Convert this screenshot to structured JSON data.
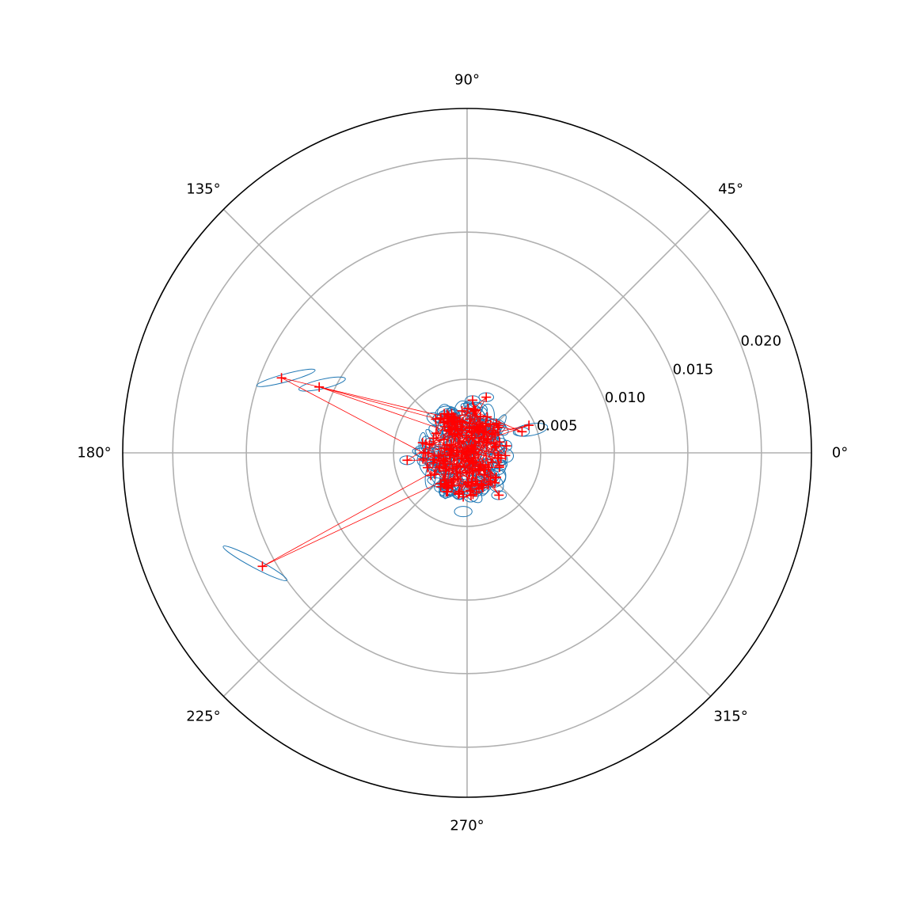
{
  "chart_data": {
    "type": "scatter",
    "projection": "polar",
    "rlim": [
      0,
      0.0234
    ],
    "radial_ticks": [
      0.005,
      0.01,
      0.015,
      0.02
    ],
    "radial_tick_labels": [
      "0.005",
      "0.010",
      "0.015",
      "0.020"
    ],
    "angular_ticks_deg": [
      0,
      45,
      90,
      135,
      180,
      225,
      270,
      315
    ],
    "angular_tick_labels": [
      "0°",
      "45°",
      "90°",
      "135°",
      "180°",
      "225°",
      "270°",
      "315°"
    ],
    "grid": true,
    "colors": {
      "markers": "#ff0000",
      "connector": "#ff0000",
      "ellipse": "#1f77b4",
      "grid": "#b0b0b0",
      "frame": "#000000"
    },
    "outliers": [
      {
        "theta_deg": 158,
        "r": 0.0136,
        "ellipse": {
          "rx": 0.00205,
          "ry": 0.00027,
          "rot_deg": -15,
          "dx": 0.0003,
          "dy": 0
        }
      },
      {
        "theta_deg": 156,
        "r": 0.011,
        "ellipse": {
          "rx": 0.00162,
          "ry": 0.00032,
          "rot_deg": -13,
          "dx": 0.0002,
          "dy": 0.0002
        }
      },
      {
        "theta_deg": 209,
        "r": 0.0159,
        "ellipse": {
          "rx": 0.00245,
          "ry": 0.0003,
          "rot_deg": 28,
          "dx": -0.0005,
          "dy": 0.0002
        }
      },
      {
        "theta_deg": 24,
        "r": 0.0046,
        "ellipse": {
          "rx": 0.00118,
          "ry": 0.0004,
          "rot_deg": -10,
          "dx": 0.0001,
          "dy": -0.0003
        }
      },
      {
        "theta_deg": 84,
        "r": 0.0036,
        "ellipse": {
          "rx": 0.0005,
          "ry": 0.0003,
          "rot_deg": 0,
          "dx": 0,
          "dy": 0
        }
      },
      {
        "theta_deg": 71,
        "r": 0.004,
        "ellipse": {
          "rx": 0.0005,
          "ry": 0.0003,
          "rot_deg": 0,
          "dx": 0,
          "dy": 0
        }
      },
      {
        "theta_deg": 187,
        "r": 0.0041,
        "ellipse": {
          "rx": 0.0005,
          "ry": 0.0003,
          "rot_deg": 0,
          "dx": 0,
          "dy": 0
        }
      },
      {
        "theta_deg": 21,
        "r": 0.004,
        "ellipse": {
          "rx": 0.0005,
          "ry": 0.0003,
          "rot_deg": 0,
          "dx": 0,
          "dy": 0
        }
      },
      {
        "theta_deg": 242,
        "r": 0.003,
        "ellipse": {
          "rx": 0.0005,
          "ry": 0.0003,
          "rot_deg": 0,
          "dx": 0,
          "dy": 0
        }
      },
      {
        "theta_deg": 307,
        "r": 0.0036,
        "ellipse": {
          "rx": 0.0005,
          "ry": 0.0003,
          "rot_deg": 0,
          "dx": 0,
          "dy": 0
        }
      },
      {
        "theta_deg": 265,
        "r": 0.003,
        "ellipse": {
          "rx": 0.0006,
          "ry": 0.00035,
          "rot_deg": 0,
          "dx": 0,
          "dy": -0.001
        }
      }
    ],
    "cluster": {
      "center_theta_deg": 170,
      "center_r": 0.0002,
      "radius_max": 0.003,
      "count": 170
    }
  }
}
